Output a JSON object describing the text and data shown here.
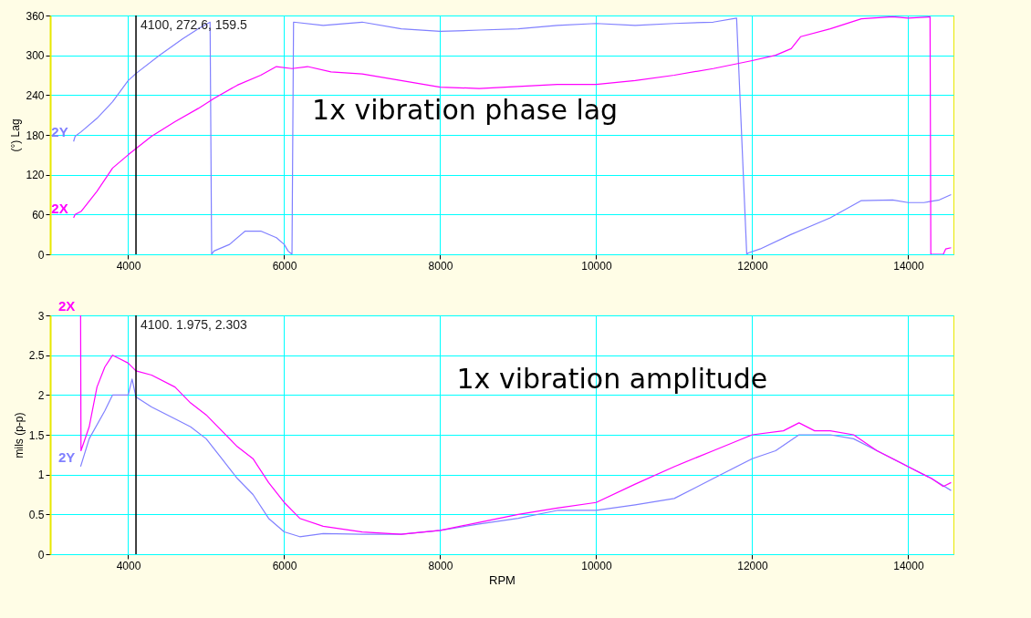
{
  "chart_data": [
    {
      "type": "line",
      "ylabel": "(°) Lag",
      "xlim": [
        3000,
        14580
      ],
      "xticks": [
        4000,
        6000,
        8000,
        10000,
        12000,
        14000
      ],
      "ylim": [
        0,
        360
      ],
      "yticks": [
        0,
        60,
        120,
        180,
        240,
        300,
        360
      ],
      "grid": true,
      "legend": false,
      "annotations": [
        {
          "text": "4100,  272.6,  159.5",
          "x": 4100,
          "y": 360
        },
        "1x vibration phase lag"
      ],
      "ref_lines": [
        {
          "axis": "x",
          "value": 4100,
          "color": "#000000"
        }
      ],
      "series": [
        {
          "name": "2Y",
          "color": "#8080ff",
          "x": [
            3300,
            3320,
            3400,
            3600,
            3800,
            4000,
            4100,
            4400,
            4700,
            4900,
            5050,
            5070,
            5100,
            5300,
            5500,
            5700,
            5900,
            6000,
            6050,
            6100,
            6120,
            6500,
            7000,
            7500,
            8000,
            8500,
            9000,
            9500,
            10000,
            10500,
            11000,
            11500,
            11800,
            11930,
            11950,
            12100,
            12500,
            13000,
            13400,
            13800,
            14000,
            14200,
            14400,
            14550
          ],
          "values": [
            170,
            178,
            185,
            205,
            230,
            262,
            272.6,
            300,
            325,
            340,
            350,
            0,
            5,
            15,
            35,
            35,
            25,
            15,
            5,
            0,
            350,
            345,
            350,
            340,
            336,
            338,
            340,
            345,
            348,
            345,
            348,
            350,
            356,
            0,
            2,
            8,
            30,
            55,
            81,
            82,
            78,
            78,
            82,
            90
          ]
        },
        {
          "name": "2X",
          "color": "#ff00ff",
          "x": [
            3300,
            3320,
            3400,
            3600,
            3800,
            4000,
            4100,
            4300,
            4600,
            4900,
            5100,
            5400,
            5700,
            5900,
            6100,
            6300,
            6600,
            7000,
            7500,
            8000,
            8500,
            9000,
            9500,
            10000,
            10500,
            11000,
            11500,
            12000,
            12300,
            12500,
            12620,
            13000,
            13400,
            13800,
            14000,
            14280,
            14290,
            14450,
            14480,
            14550
          ],
          "values": [
            55,
            60,
            65,
            95,
            130,
            150,
            159.5,
            178,
            200,
            220,
            235,
            255,
            270,
            283,
            280,
            283,
            275,
            272,
            262,
            252,
            250,
            253,
            256,
            256,
            262,
            270,
            280,
            292,
            300,
            310,
            328,
            340,
            355,
            358,
            356,
            358,
            0,
            0,
            8,
            10
          ]
        }
      ]
    },
    {
      "type": "line",
      "xlabel": "RPM",
      "ylabel": "mils (p-p)",
      "xlim": [
        3000,
        14580
      ],
      "xticks": [
        4000,
        6000,
        8000,
        10000,
        12000,
        14000
      ],
      "ylim": [
        0,
        3
      ],
      "yticks": [
        0,
        0.5,
        1,
        1.5,
        2,
        2.5,
        3
      ],
      "grid": true,
      "legend": false,
      "annotations": [
        {
          "text": "4100.  1.975,  2.303",
          "x": 4100,
          "y": 3
        },
        "1x vibration amplitude"
      ],
      "ref_lines": [
        {
          "axis": "x",
          "value": 4100,
          "color": "#000000"
        }
      ],
      "series": [
        {
          "name": "2Y",
          "color": "#8080ff",
          "x": [
            3390,
            3500,
            3700,
            3800,
            4000,
            4050,
            4100,
            4300,
            4600,
            4800,
            5000,
            5200,
            5400,
            5600,
            5800,
            6000,
            6200,
            6500,
            7000,
            7500,
            8000,
            8500,
            9000,
            9500,
            10000,
            10500,
            11000,
            11500,
            12000,
            12300,
            12600,
            13000,
            13300,
            13600,
            14000,
            14300,
            14550
          ],
          "values": [
            1.1,
            1.45,
            1.8,
            2.0,
            2.0,
            2.2,
            1.975,
            1.85,
            1.7,
            1.6,
            1.45,
            1.2,
            0.95,
            0.75,
            0.45,
            0.28,
            0.22,
            0.26,
            0.25,
            0.25,
            0.3,
            0.38,
            0.45,
            0.55,
            0.55,
            0.62,
            0.7,
            0.95,
            1.2,
            1.3,
            1.5,
            1.5,
            1.45,
            1.3,
            1.1,
            0.95,
            0.8
          ]
        },
        {
          "name": "2X",
          "color": "#ff00ff",
          "x": [
            3390,
            3395,
            3500,
            3600,
            3700,
            3800,
            3900,
            4000,
            4100,
            4300,
            4600,
            4800,
            5000,
            5200,
            5400,
            5600,
            5800,
            6000,
            6200,
            6500,
            7000,
            7500,
            8000,
            8500,
            9000,
            9500,
            10000,
            10500,
            11000,
            11500,
            12000,
            12400,
            12600,
            12800,
            13000,
            13300,
            13600,
            14000,
            14300,
            14450,
            14550
          ],
          "values": [
            3,
            1.3,
            1.6,
            2.1,
            2.35,
            2.5,
            2.45,
            2.4,
            2.303,
            2.25,
            2.1,
            1.9,
            1.75,
            1.55,
            1.35,
            1.2,
            0.9,
            0.65,
            0.45,
            0.35,
            0.28,
            0.25,
            0.3,
            0.4,
            0.5,
            0.58,
            0.65,
            0.88,
            1.1,
            1.3,
            1.5,
            1.55,
            1.65,
            1.55,
            1.55,
            1.5,
            1.3,
            1.1,
            0.95,
            0.85,
            0.9
          ]
        }
      ]
    }
  ]
}
